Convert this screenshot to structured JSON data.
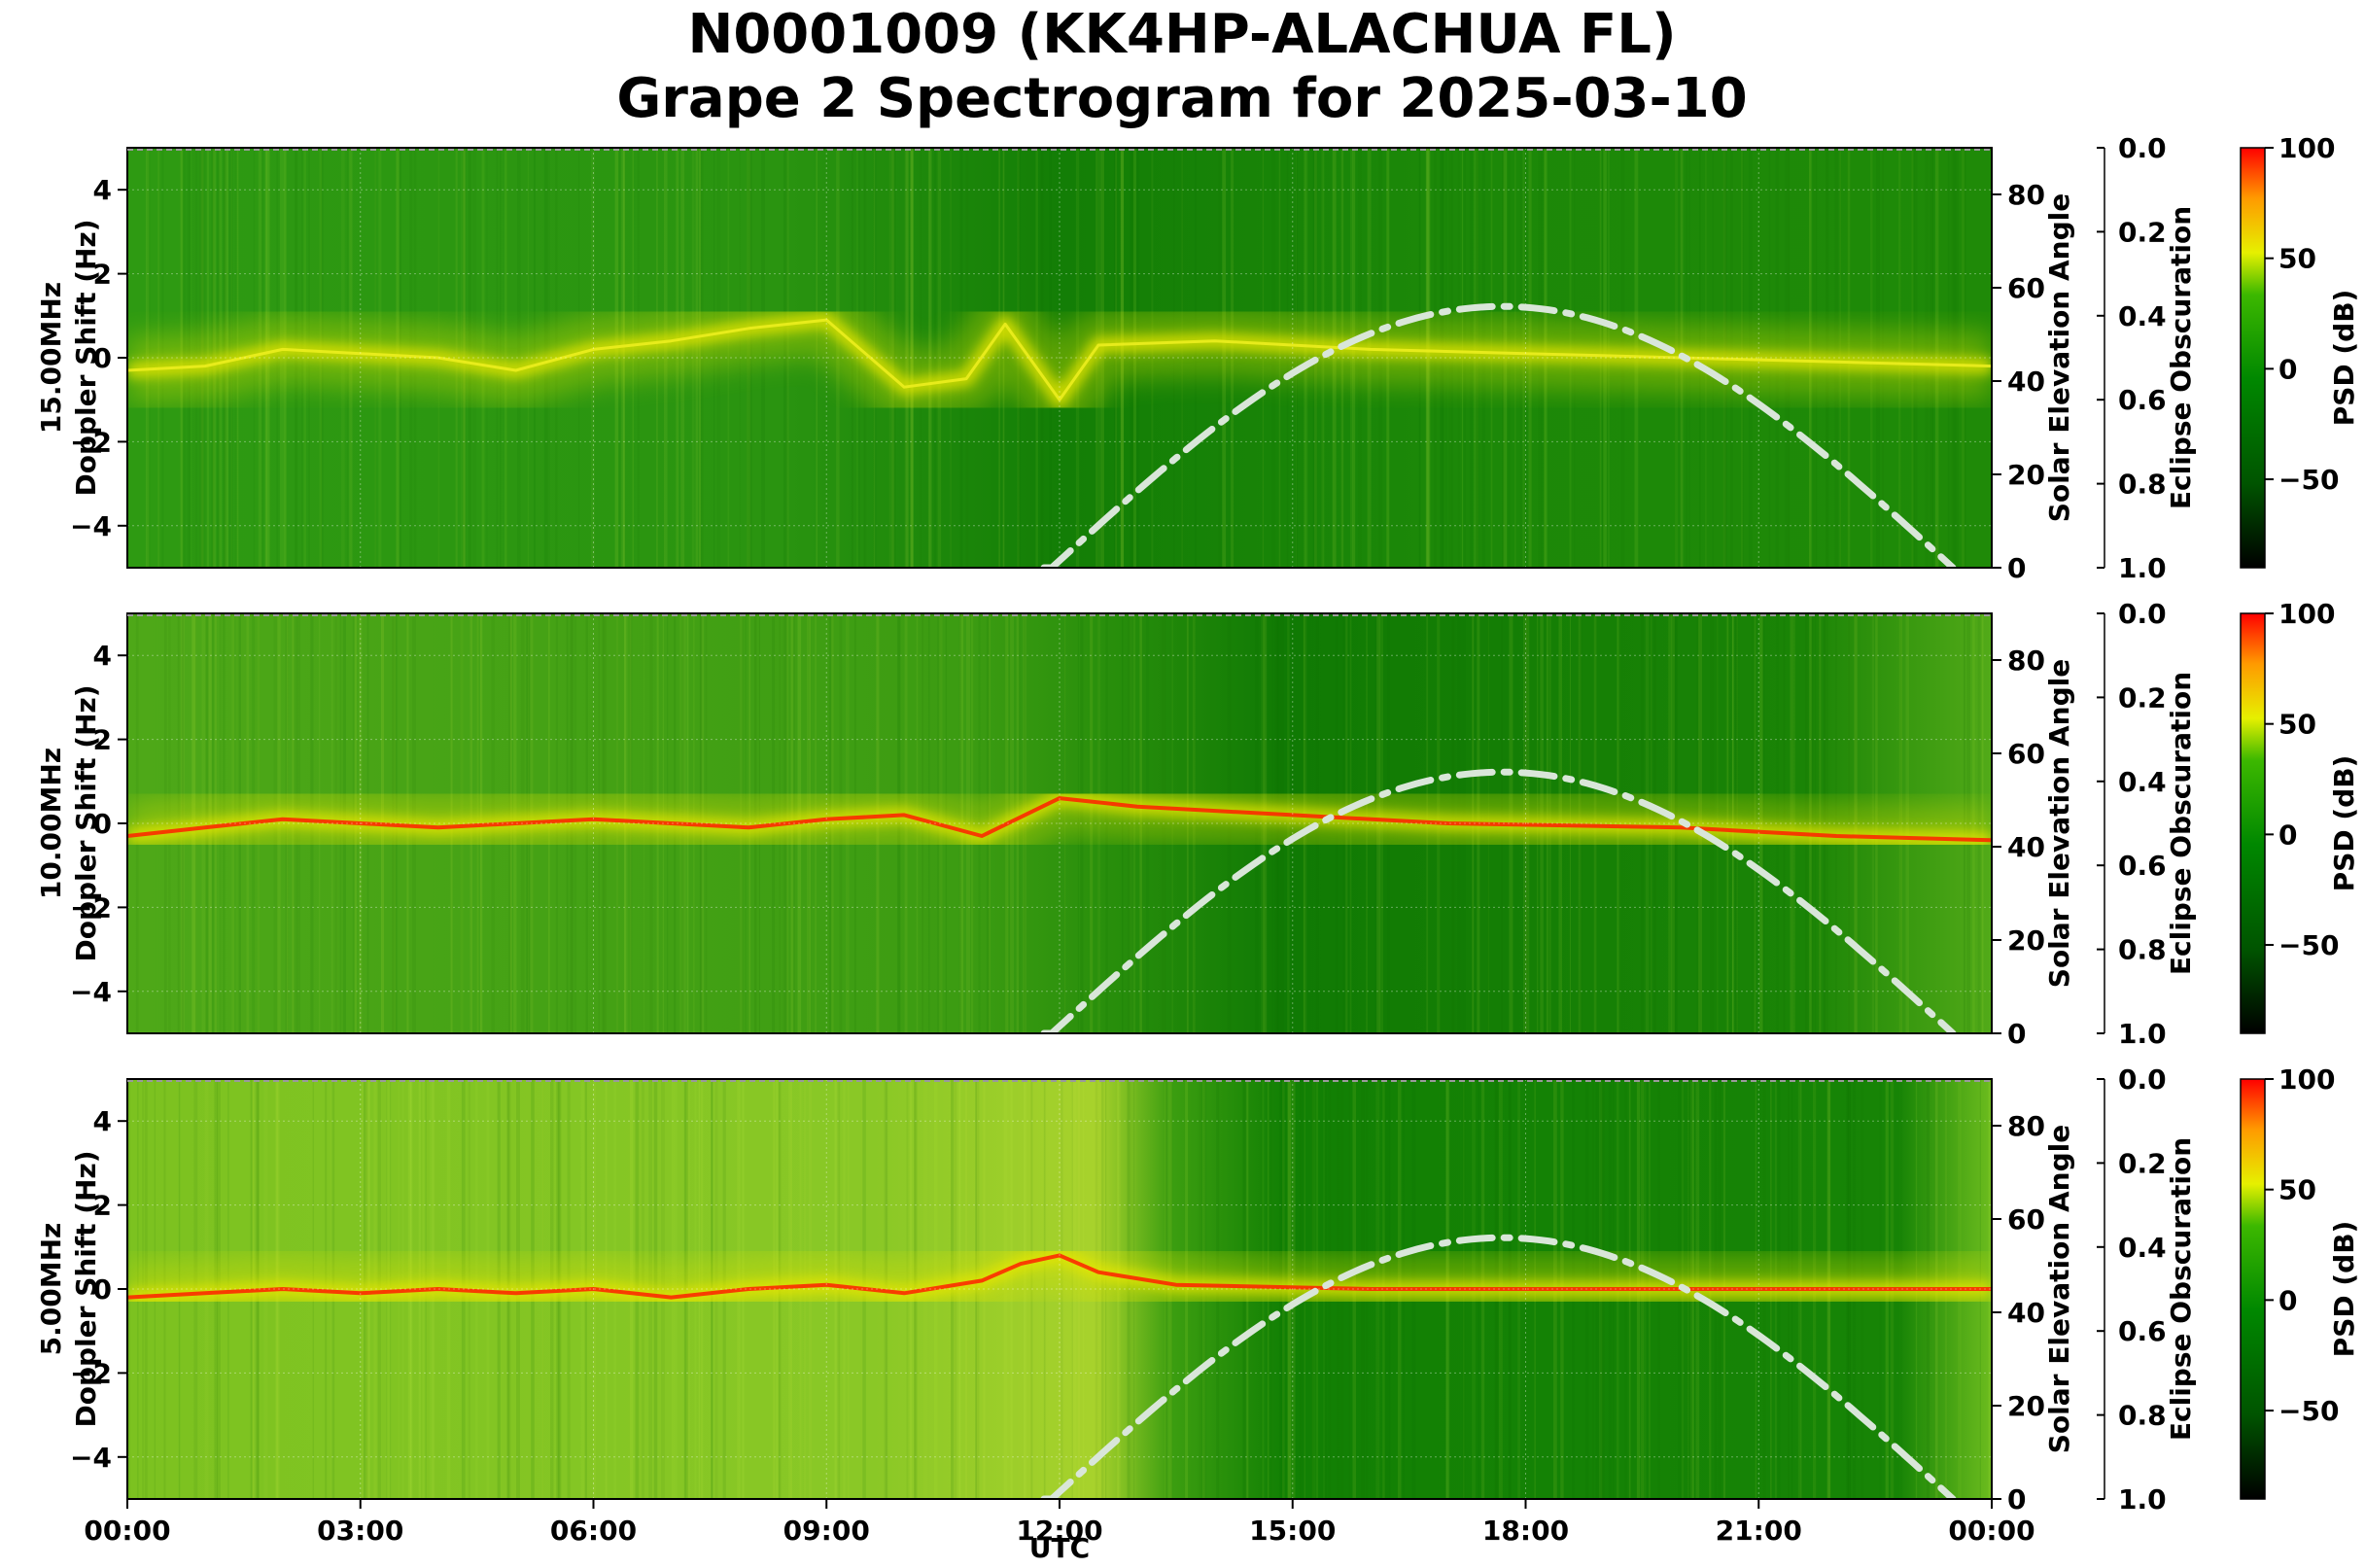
{
  "chart_data": {
    "type": "heatmap",
    "title_lines": [
      "N0001009 (KK4HP-ALACHUA FL)",
      "Grape 2 Spectrogram for 2025-03-10"
    ],
    "xlabel": "UTC",
    "x_ticks": [
      "00:00",
      "03:00",
      "06:00",
      "09:00",
      "12:00",
      "15:00",
      "18:00",
      "21:00",
      "00:00"
    ],
    "x_range_hours": [
      0,
      24
    ],
    "y_ticks": [
      -4,
      -2,
      0,
      2,
      4
    ],
    "ylim": [
      -5,
      5
    ],
    "elev_label": "Solar Elevation Angle",
    "elev_ticks": [
      0,
      20,
      40,
      60,
      80
    ],
    "elev_range": [
      0,
      90
    ],
    "eclipse_label": "Eclipse Obscuration",
    "eclipse_ticks": [
      "0.0",
      "0.2",
      "0.4",
      "0.6",
      "0.8",
      "1.0"
    ],
    "psd_label": "PSD (dB)",
    "psd_ticks": [
      100,
      50,
      0,
      -50
    ],
    "psd_range": [
      -90,
      100
    ],
    "solar_elevation": {
      "peak_hour": 17.7,
      "peak_deg": 56,
      "sunrise_hour": 11.8,
      "sunset_hour": 23.5
    },
    "panels": [
      {
        "freq_label": "15.00MHz",
        "ylabel": "Doppler Shift (Hz)",
        "trace": [
          [
            0,
            -0.3
          ],
          [
            1,
            -0.2
          ],
          [
            2,
            0.2
          ],
          [
            3,
            0.1
          ],
          [
            4,
            0.0
          ],
          [
            5,
            -0.3
          ],
          [
            6,
            0.2
          ],
          [
            7,
            0.4
          ],
          [
            8,
            0.7
          ],
          [
            9,
            0.9
          ],
          [
            10,
            -0.7
          ],
          [
            10.8,
            -0.5
          ],
          [
            11.3,
            0.8
          ],
          [
            12,
            -1.0
          ],
          [
            12.5,
            0.3
          ],
          [
            14,
            0.4
          ],
          [
            16,
            0.2
          ],
          [
            18,
            0.1
          ],
          [
            20,
            0.0
          ],
          [
            22,
            -0.1
          ],
          [
            24,
            -0.2
          ]
        ]
      },
      {
        "freq_label": "10.00MHz",
        "ylabel": "Doppler Shift (Hz)",
        "trace": [
          [
            0,
            -0.3
          ],
          [
            1,
            -0.1
          ],
          [
            2,
            0.1
          ],
          [
            3,
            0.0
          ],
          [
            4,
            -0.1
          ],
          [
            5,
            0.0
          ],
          [
            6,
            0.1
          ],
          [
            7,
            0.0
          ],
          [
            8,
            -0.1
          ],
          [
            9,
            0.1
          ],
          [
            10,
            0.2
          ],
          [
            11,
            -0.3
          ],
          [
            12,
            0.6
          ],
          [
            13,
            0.4
          ],
          [
            15,
            0.2
          ],
          [
            17,
            0.0
          ],
          [
            20,
            -0.1
          ],
          [
            22,
            -0.3
          ],
          [
            24,
            -0.4
          ]
        ]
      },
      {
        "freq_label": "5.00MHz",
        "ylabel": "Doppler Shift (Hz)",
        "trace": [
          [
            0,
            -0.2
          ],
          [
            1,
            -0.1
          ],
          [
            2,
            0.0
          ],
          [
            3,
            -0.1
          ],
          [
            4,
            0.0
          ],
          [
            5,
            -0.1
          ],
          [
            6,
            0.0
          ],
          [
            7,
            -0.2
          ],
          [
            8,
            0.0
          ],
          [
            9,
            0.1
          ],
          [
            10,
            -0.1
          ],
          [
            11,
            0.2
          ],
          [
            11.5,
            0.6
          ],
          [
            12,
            0.8
          ],
          [
            12.5,
            0.4
          ],
          [
            13.5,
            0.1
          ],
          [
            16,
            0.0
          ],
          [
            20,
            0.0
          ],
          [
            24,
            0.0
          ]
        ]
      }
    ],
    "colors": {
      "dark_green": "#007a00",
      "mid_green": "#3caa0a",
      "yellow": "#e6e600",
      "red": "#ff2000",
      "elevation_curve": "#d9e6d9"
    }
  }
}
